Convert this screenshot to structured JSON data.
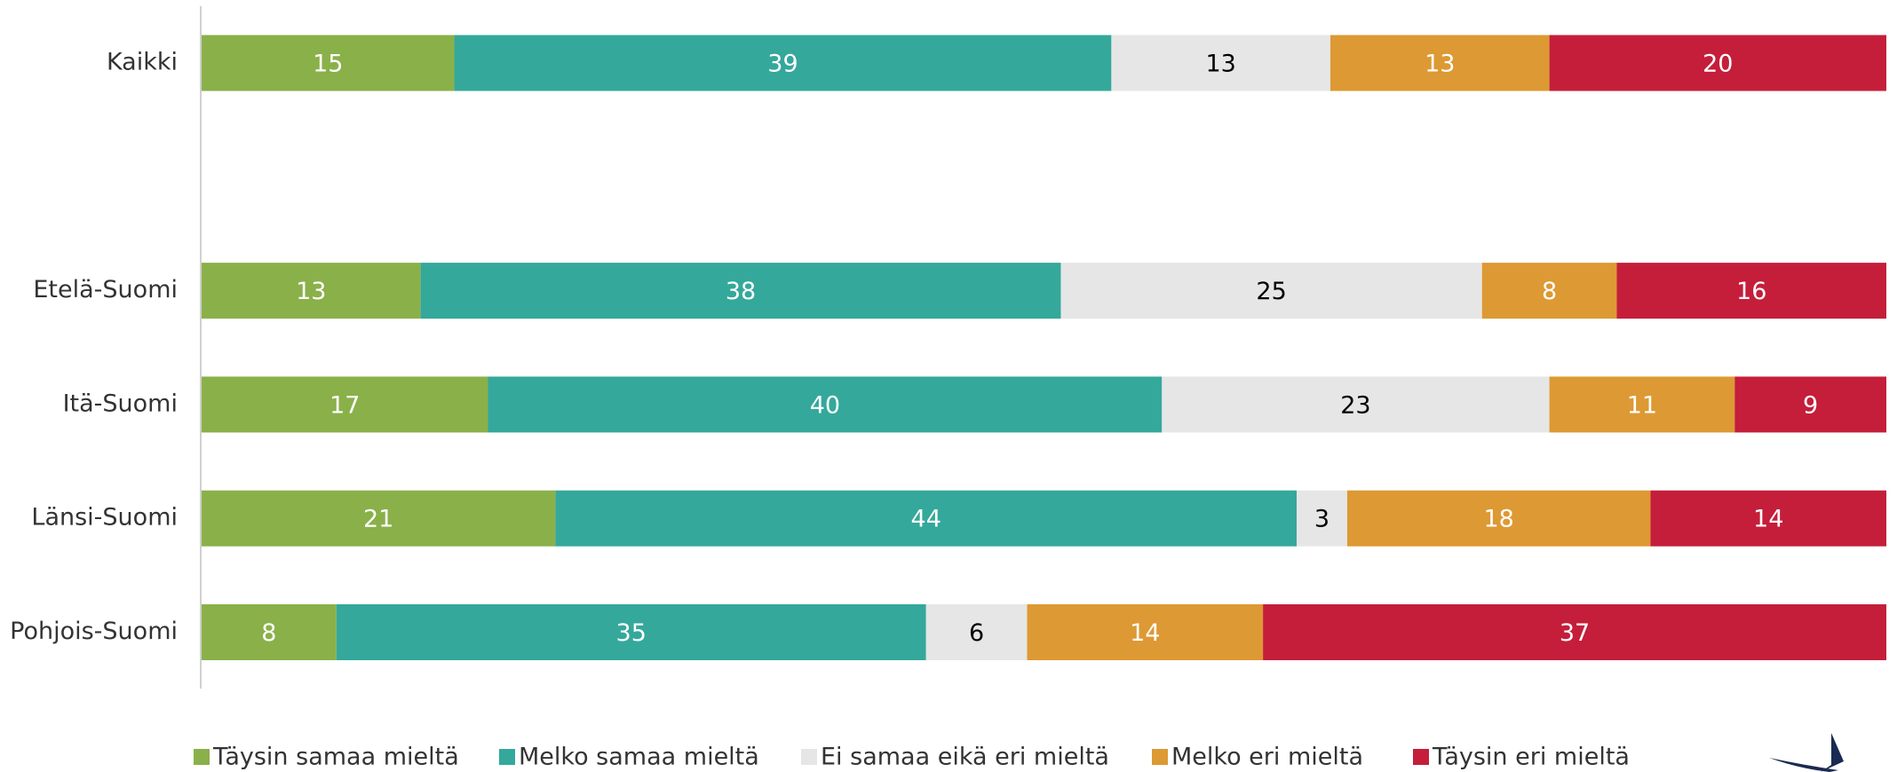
{
  "chart_data": {
    "type": "stacked_bar_horizontal",
    "categories": [
      "Kaikki",
      null,
      "Etelä-Suomi",
      "Itä-Suomi",
      "Länsi-Suomi",
      "Pohjois-Suomi"
    ],
    "xlim": [
      0,
      100
    ],
    "legend": "bottom",
    "series": [
      {
        "name": "Täysin samaa mieltä",
        "color": "#8ab04a",
        "values": [
          15,
          null,
          13,
          17,
          21,
          8
        ]
      },
      {
        "name": "Melko samaa mieltä",
        "color": "#34a89b",
        "values": [
          39,
          null,
          38,
          40,
          44,
          35
        ]
      },
      {
        "name": "Ei samaa eikä eri mieltä",
        "color": "#e6e6e6",
        "values": [
          13,
          null,
          25,
          23,
          3,
          6
        ]
      },
      {
        "name": "Melko eri mieltä",
        "color": "#dd9933",
        "values": [
          13,
          null,
          8,
          11,
          18,
          14
        ]
      },
      {
        "name": "Täysin eri mieltä",
        "color": "#c41e3a",
        "values": [
          20,
          null,
          16,
          9,
          14,
          37
        ]
      }
    ]
  }
}
